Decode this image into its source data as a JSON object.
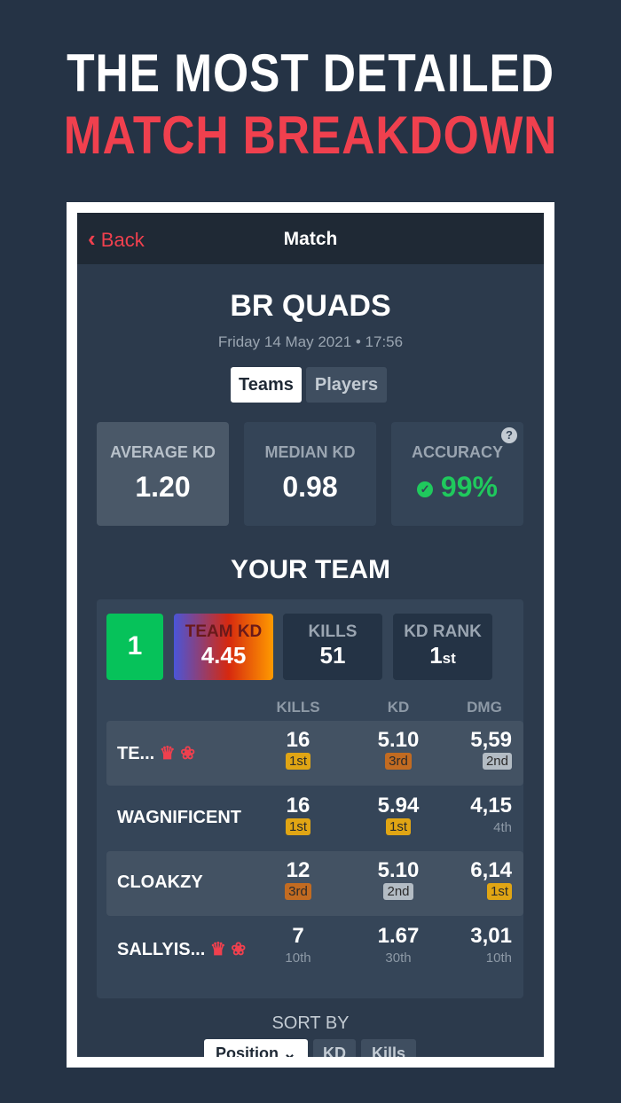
{
  "hero": {
    "line1": "THE MOST DETAILED",
    "line2": "MATCH BREAKDOWN"
  },
  "header": {
    "back": "Back",
    "title": "Match"
  },
  "match": {
    "mode": "BR QUADS",
    "date": "Friday 14 May 2021 • 17:56"
  },
  "tabs": [
    {
      "label": "Teams",
      "active": true
    },
    {
      "label": "Players",
      "active": false
    }
  ],
  "stats": [
    {
      "label": "AVERAGE KD",
      "value": "1.20"
    },
    {
      "label": "MEDIAN KD",
      "value": "0.98"
    },
    {
      "label": "ACCURACY",
      "value": "99%"
    }
  ],
  "team": {
    "heading": "YOUR TEAM",
    "placement": "1",
    "team_kd_label": "TEAM KD",
    "team_kd": "4.45",
    "kills_label": "KILLS",
    "kills": "51",
    "kd_rank_label": "KD RANK",
    "kd_rank": "1",
    "kd_rank_suffix": "st"
  },
  "columns": [
    "KILLS",
    "KD",
    "DMG"
  ],
  "players": [
    {
      "name": "TE...",
      "crown": true,
      "kills": "16",
      "kills_rank": "1st",
      "kd": "5.10",
      "kd_rank": "3rd",
      "dmg": "5,59",
      "dmg_rank": "2nd"
    },
    {
      "name": "WAGNIFICENT",
      "crown": false,
      "kills": "16",
      "kills_rank": "1st",
      "kd": "5.94",
      "kd_rank": "1st",
      "dmg": "4,15",
      "dmg_rank": "4th"
    },
    {
      "name": "CLOAKZY",
      "crown": false,
      "kills": "12",
      "kills_rank": "3rd",
      "kd": "5.10",
      "kd_rank": "2nd",
      "dmg": "6,14",
      "dmg_rank": "1st"
    },
    {
      "name": "SALLYIS...",
      "crown": true,
      "kills": "7",
      "kills_rank": "10th",
      "kd": "1.67",
      "kd_rank": "30th",
      "dmg": "3,01",
      "dmg_rank": "10th"
    }
  ],
  "sort": {
    "label": "SORT BY",
    "options": [
      "Position",
      "KD",
      "Kills"
    ]
  },
  "colors": {
    "bg": "#253345",
    "accent": "#f0404e",
    "green": "#1fc95d"
  }
}
